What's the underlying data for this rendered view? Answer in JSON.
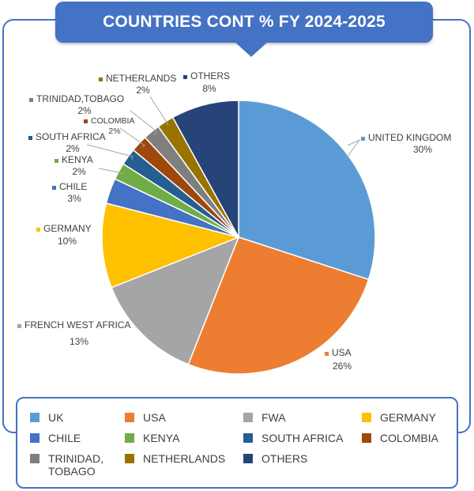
{
  "title": "COUNTRIES CONT % FY 2024-2025",
  "chart_data": {
    "type": "pie",
    "title": "COUNTRIES CONT % FY 2024-2025",
    "slices": [
      {
        "label": "UNITED KINGDOM",
        "value_label": "30%",
        "value": 30,
        "legend": "UK",
        "color": "#5b9bd5"
      },
      {
        "label": "USA",
        "value_label": "26%",
        "value": 26,
        "legend": "USA",
        "color": "#ed7d31"
      },
      {
        "label": "FRENCH WEST AFRICA",
        "value_label": "13%",
        "value": 13,
        "legend": "FWA",
        "color": "#a5a5a5"
      },
      {
        "label": "GERMANY",
        "value_label": "10%",
        "value": 10,
        "legend": "GERMANY",
        "color": "#ffc000"
      },
      {
        "label": "CHILE",
        "value_label": "3%",
        "value": 3,
        "legend": "CHILE",
        "color": "#4472c4"
      },
      {
        "label": "KENYA",
        "value_label": "2%",
        "value": 2,
        "legend": "KENYA",
        "color": "#70ad47"
      },
      {
        "label": "SOUTH AFRICA",
        "value_label": "2%",
        "value": 2,
        "legend": "SOUTH AFRICA",
        "color": "#255e91"
      },
      {
        "label": "COLOMBIA",
        "value_label": "2%",
        "value": 2,
        "legend": "COLOMBIA",
        "color": "#9e480e"
      },
      {
        "label": "TRINIDAD,TOBAGO",
        "value_label": "2%",
        "value": 2,
        "legend": "TRINIDAD,\nTOBAGO",
        "color": "#7f7f7f"
      },
      {
        "label": "NETHERLANDS",
        "value_label": "2%",
        "value": 2,
        "legend": "NETHERLANDS",
        "color": "#997300"
      },
      {
        "label": "OTHERS",
        "value_label": "8%",
        "value": 8,
        "legend": "OTHERS",
        "color": "#264478"
      }
    ],
    "legend_placement": "bottom"
  }
}
